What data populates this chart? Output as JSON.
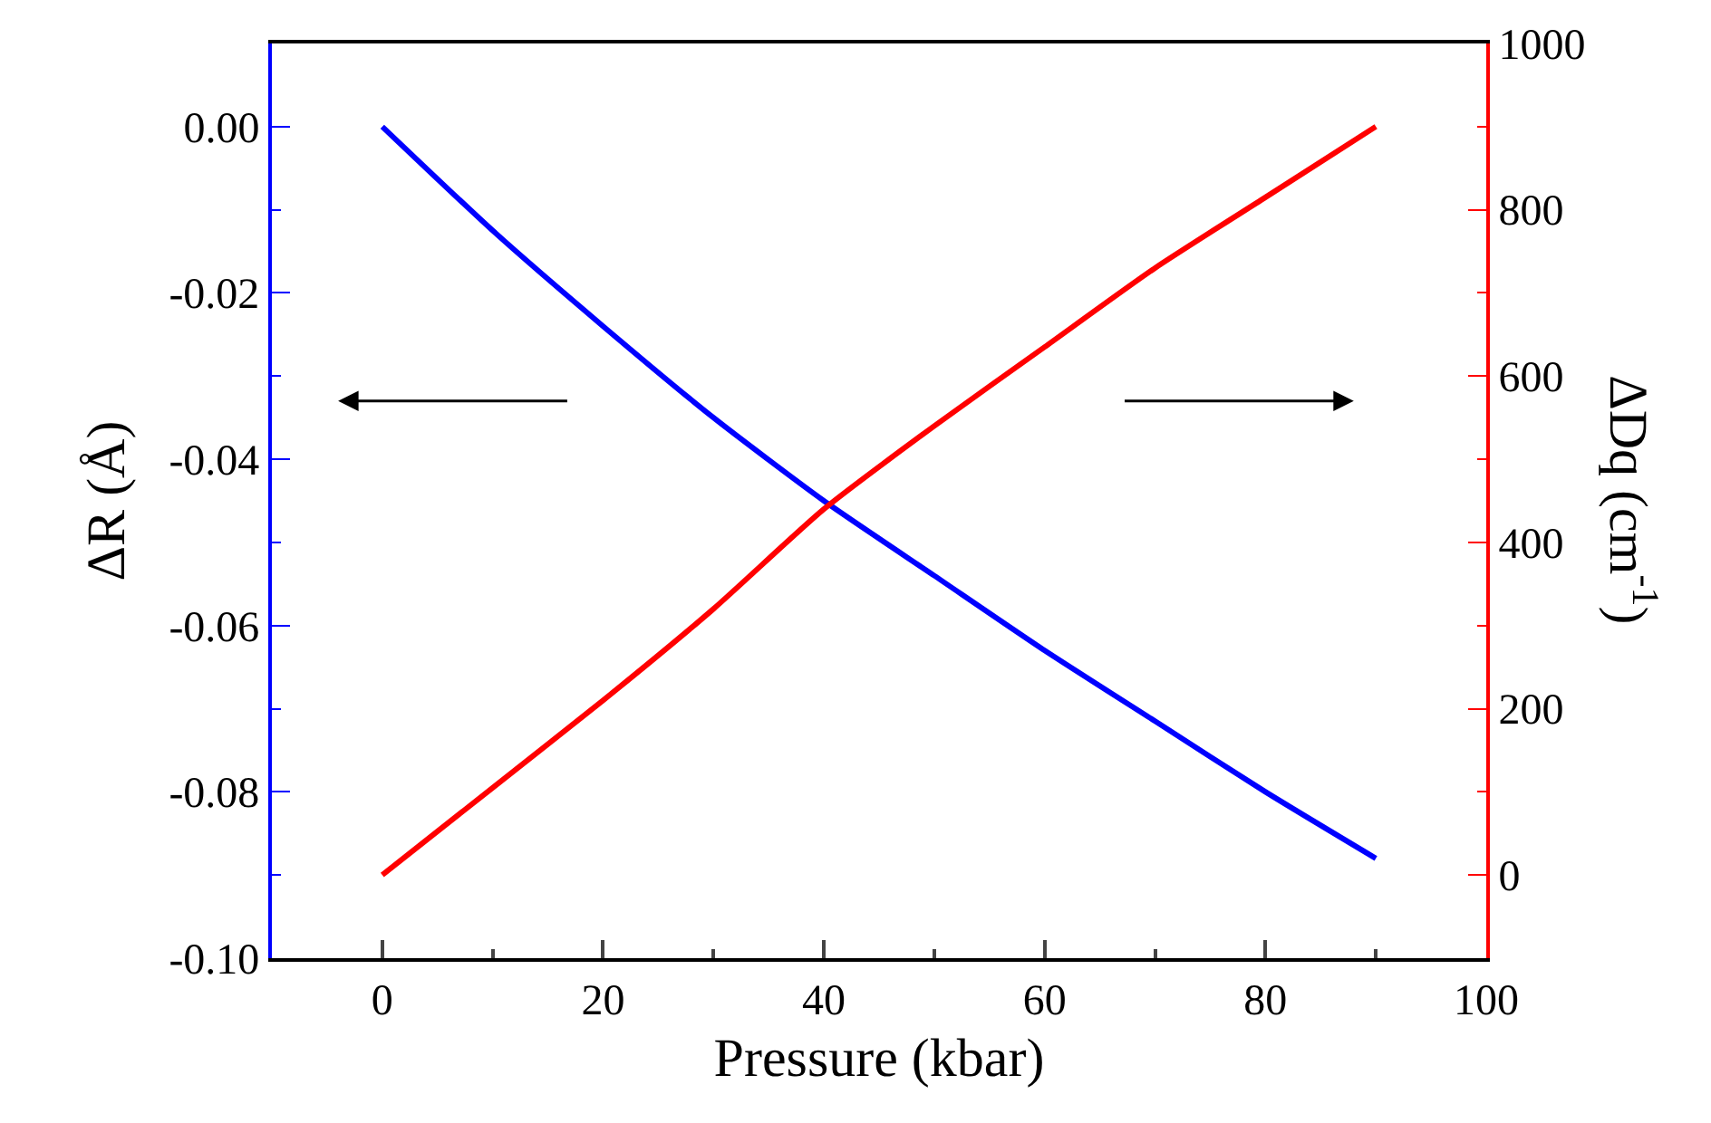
{
  "chart_data": {
    "type": "line",
    "xlabel": "Pressure (kbar)",
    "ylabel": "ΔR (Å)",
    "y2label": "ΔDq (cm$^{-1}$)",
    "x": [
      0,
      10,
      20,
      30,
      40,
      50,
      60,
      70,
      80,
      90
    ],
    "series": [
      {
        "color": "#0000ff",
        "values": [
          0,
          -0.0125,
          -0.024,
          -0.035,
          -0.045,
          -0.054,
          -0.063,
          -0.0715,
          -0.08,
          -0.088
        ]
      },
      {
        "color": "#ff0000",
        "axis": "y2",
        "values": [
          0,
          105,
          210,
          320,
          440,
          540,
          635,
          730,
          815,
          900
        ]
      }
    ],
    "xlim": [
      -10,
      100
    ],
    "xticks": [
      0,
      20,
      40,
      60,
      80,
      100
    ],
    "ylim": [
      -0.1,
      0.01
    ],
    "yticks": [
      {
        "value": 0,
        "label": "0.00"
      },
      {
        "value": -0.02,
        "label": "-0.02"
      },
      {
        "value": -0.04,
        "label": "-0.04"
      },
      {
        "value": -0.06,
        "label": "-0.06"
      },
      {
        "value": -0.08,
        "label": "-0.08"
      },
      {
        "value": -0.1,
        "label": "-0.10"
      }
    ],
    "y2lim": [
      -100,
      1000
    ],
    "y2ticks": [
      0,
      200,
      400,
      600,
      800,
      1000
    ],
    "marker": "none",
    "line_style": "solid"
  }
}
